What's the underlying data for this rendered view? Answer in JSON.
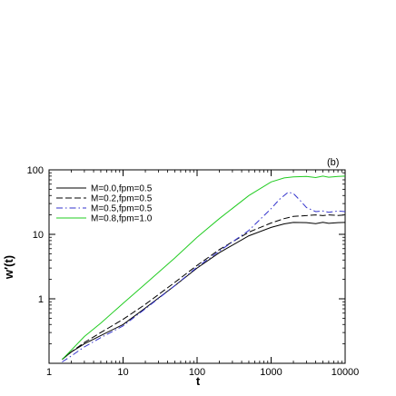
{
  "chart_data": {
    "type": "line",
    "panel_label": "(b)",
    "xlabel": "t",
    "ylabel": "w′(t)",
    "xscale": "log",
    "yscale": "log",
    "xlim": [
      1,
      10000
    ],
    "ylim": [
      0.1,
      100
    ],
    "x_ticks": [
      {
        "value": 1,
        "label": "1"
      },
      {
        "value": 10,
        "label": "10"
      },
      {
        "value": 100,
        "label": "100"
      },
      {
        "value": 1000,
        "label": "1000"
      },
      {
        "value": 10000,
        "label": "10000"
      }
    ],
    "y_ticks": [
      {
        "value": 1,
        "label": "1"
      },
      {
        "value": 10,
        "label": "10"
      },
      {
        "value": 100,
        "label": "100"
      }
    ],
    "legend_position": "top-left",
    "series": [
      {
        "name": "M=0.0,fpm=0.5",
        "color": "#000000",
        "dash": "solid",
        "points": [
          [
            1.5,
            0.115
          ],
          [
            2,
            0.15
          ],
          [
            3,
            0.2
          ],
          [
            5,
            0.27
          ],
          [
            10,
            0.4
          ],
          [
            20,
            0.72
          ],
          [
            50,
            1.6
          ],
          [
            100,
            3.0
          ],
          [
            200,
            5.2
          ],
          [
            500,
            9.5
          ],
          [
            1000,
            12.8
          ],
          [
            1500,
            14.5
          ],
          [
            2000,
            15.3
          ],
          [
            3000,
            15.2
          ],
          [
            4000,
            14.6
          ],
          [
            5000,
            15.4
          ],
          [
            6000,
            14.8
          ],
          [
            8000,
            15.2
          ],
          [
            10000,
            15.3
          ]
        ]
      },
      {
        "name": "M=0.2,fpm=0.5",
        "color": "#000000",
        "dash": "dashed",
        "points": [
          [
            1.5,
            0.115
          ],
          [
            2,
            0.15
          ],
          [
            3,
            0.21
          ],
          [
            5,
            0.3
          ],
          [
            10,
            0.48
          ],
          [
            20,
            0.82
          ],
          [
            50,
            1.8
          ],
          [
            100,
            3.3
          ],
          [
            200,
            5.8
          ],
          [
            500,
            10.8
          ],
          [
            1000,
            15.0
          ],
          [
            1500,
            17.5
          ],
          [
            2000,
            19.0
          ],
          [
            3000,
            19.5
          ],
          [
            4000,
            20.0
          ],
          [
            5000,
            19.5
          ],
          [
            6000,
            20.0
          ],
          [
            8000,
            19.6
          ],
          [
            10000,
            20.0
          ]
        ]
      },
      {
        "name": "M=0.5,fpm=0.5",
        "color": "#3333cc",
        "dash": "dashdot",
        "points": [
          [
            1.5,
            0.105
          ],
          [
            2,
            0.13
          ],
          [
            3,
            0.18
          ],
          [
            5,
            0.25
          ],
          [
            10,
            0.38
          ],
          [
            20,
            0.7
          ],
          [
            50,
            1.6
          ],
          [
            100,
            3.1
          ],
          [
            200,
            5.5
          ],
          [
            500,
            11.5
          ],
          [
            1000,
            25.0
          ],
          [
            1300,
            35.0
          ],
          [
            1700,
            45.0
          ],
          [
            2000,
            43.0
          ],
          [
            2500,
            33.0
          ],
          [
            3000,
            26.0
          ],
          [
            4000,
            22.5
          ],
          [
            5000,
            23.0
          ],
          [
            6000,
            22.0
          ],
          [
            8000,
            23.0
          ],
          [
            10000,
            22.5
          ]
        ]
      },
      {
        "name": "M=0.8,fpm=1.0",
        "color": "#22cc22",
        "dash": "solid",
        "points": [
          [
            1.5,
            0.115
          ],
          [
            2,
            0.16
          ],
          [
            3,
            0.26
          ],
          [
            5,
            0.42
          ],
          [
            10,
            0.85
          ],
          [
            20,
            1.7
          ],
          [
            50,
            4.3
          ],
          [
            100,
            9.0
          ],
          [
            200,
            17.5
          ],
          [
            500,
            40.0
          ],
          [
            1000,
            65.0
          ],
          [
            1500,
            75.0
          ],
          [
            2000,
            78.0
          ],
          [
            3000,
            79.0
          ],
          [
            4000,
            76.0
          ],
          [
            5000,
            80.0
          ],
          [
            6000,
            77.0
          ],
          [
            8000,
            79.0
          ],
          [
            10000,
            80.0
          ]
        ]
      }
    ]
  }
}
